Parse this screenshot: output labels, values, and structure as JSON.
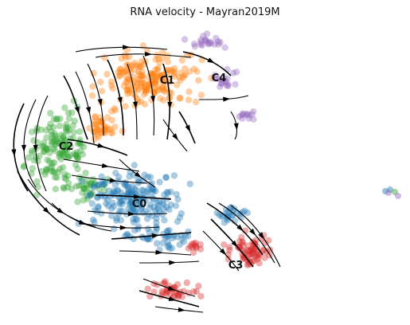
{
  "chart_data": {
    "type": "scatter",
    "title": "RNA velocity - Mayran2019M",
    "xlabel": "",
    "ylabel": "",
    "grid": false,
    "legend": "on data",
    "overlay": "velocity streamlines with arrowheads",
    "clusters": [
      {
        "name": "C0",
        "color": "#1f77b4",
        "label_at": [
          175,
          260
        ]
      },
      {
        "name": "C1",
        "color": "#ff7f0e",
        "label_at": [
          210,
          105
        ]
      },
      {
        "name": "C2",
        "color": "#2ca02c",
        "label_at": [
          83,
          188
        ]
      },
      {
        "name": "C3",
        "color": "#d62728",
        "label_at": [
          296,
          337
        ]
      },
      {
        "name": "C4",
        "color": "#9467bd",
        "label_at": [
          275,
          102
        ]
      }
    ]
  }
}
